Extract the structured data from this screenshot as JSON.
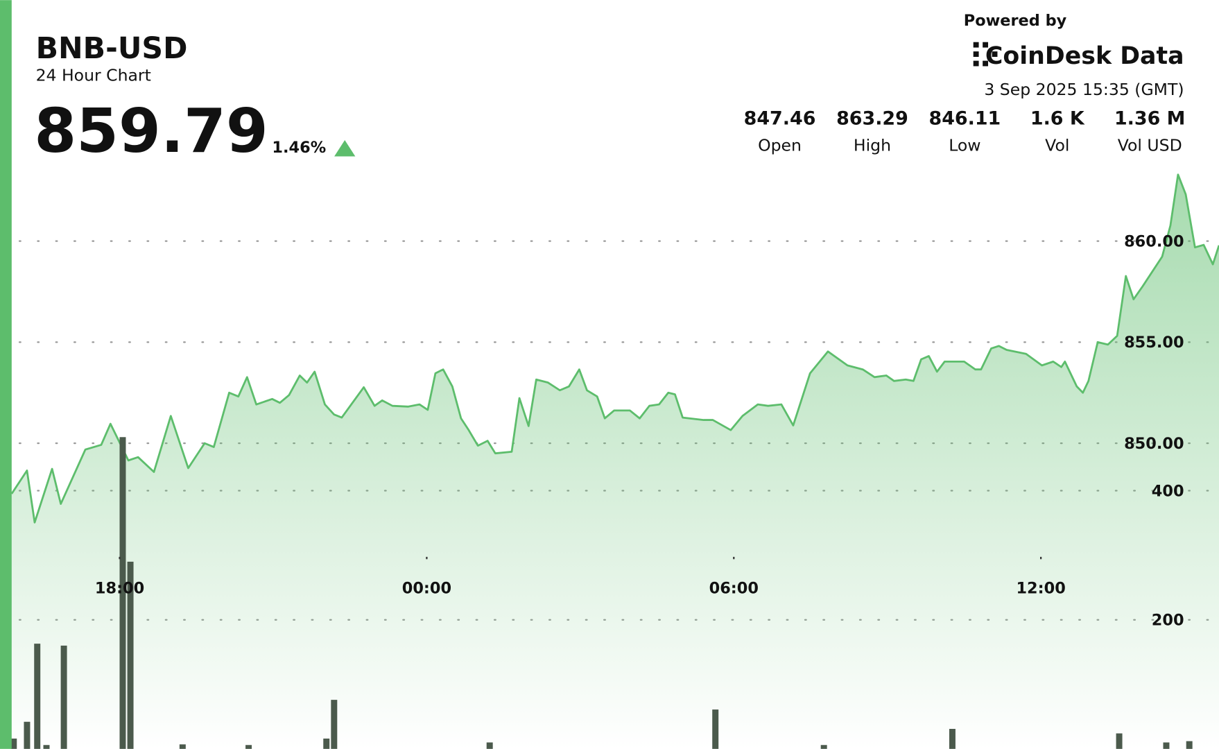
{
  "header": {
    "title": "BNB-USD",
    "subtitle": "24 Hour Chart",
    "price": "859.79",
    "change": "1.46%",
    "powered_by": "Powered by",
    "brand": "CoinDesk Data",
    "timestamp": "3 Sep 2025 15:35 (GMT)",
    "stats": [
      {
        "value": "847.46",
        "label": "Open"
      },
      {
        "value": "863.29",
        "label": "High"
      },
      {
        "value": "846.11",
        "label": "Low"
      },
      {
        "value": "1.6 K",
        "label": "Vol"
      },
      {
        "value": "1.36 M",
        "label": "Vol USD"
      }
    ]
  },
  "chart_data": {
    "type": "line",
    "grid": true,
    "xlim": [
      15.89,
      39.48
    ],
    "xticks": [
      {
        "value": 18,
        "label": "18:00"
      },
      {
        "value": 24,
        "label": "00:00"
      },
      {
        "value": 30,
        "label": "06:00"
      },
      {
        "value": 36,
        "label": "12:00"
      }
    ],
    "ylim": [
      834.88,
      871.92
    ],
    "yticks": [
      {
        "value": 850,
        "label": "850.00"
      },
      {
        "value": 855,
        "label": "855.00"
      },
      {
        "value": 860,
        "label": "860.00"
      }
    ],
    "y2lim": [
      0,
      1160
    ],
    "y2ticks": [
      200,
      400
    ],
    "series": [
      {
        "name": "Price",
        "color": "#5dbd6c",
        "x": [
          15.89,
          16.19,
          16.34,
          16.68,
          16.85,
          17.33,
          17.64,
          17.82,
          18.17,
          18.36,
          18.67,
          19.0,
          19.34,
          19.66,
          19.84,
          20.14,
          20.32,
          20.49,
          20.67,
          20.98,
          21.13,
          21.31,
          21.52,
          21.66,
          21.81,
          22.01,
          22.19,
          22.34,
          22.77,
          22.98,
          23.13,
          23.33,
          23.64,
          23.86,
          24.02,
          24.17,
          24.32,
          24.5,
          24.67,
          24.82,
          25.0,
          25.19,
          25.34,
          25.66,
          25.81,
          25.99,
          26.14,
          26.37,
          26.6,
          26.78,
          26.98,
          27.13,
          27.33,
          27.48,
          27.66,
          27.97,
          28.16,
          28.35,
          28.54,
          28.72,
          28.85,
          29.0,
          29.41,
          29.59,
          29.94,
          30.17,
          30.47,
          30.67,
          30.93,
          31.16,
          31.49,
          31.84,
          32.22,
          32.52,
          32.75,
          32.98,
          33.13,
          33.36,
          33.51,
          33.66,
          33.81,
          33.97,
          34.12,
          34.5,
          34.72,
          34.83,
          35.03,
          35.18,
          35.33,
          35.71,
          36.02,
          36.24,
          36.4,
          36.47,
          36.7,
          36.82,
          36.93,
          37.11,
          37.31,
          37.49,
          37.66,
          37.81,
          37.99,
          38.37,
          38.53,
          38.68,
          38.83,
          39.01,
          39.18,
          39.36,
          39.48
        ],
        "values": [
          847.5,
          848.65,
          846.08,
          848.73,
          847.0,
          849.69,
          849.92,
          850.96,
          849.15,
          849.31,
          848.58,
          851.35,
          848.77,
          850.0,
          849.81,
          852.5,
          852.31,
          853.27,
          851.92,
          852.19,
          852.0,
          852.38,
          853.35,
          853.0,
          853.54,
          851.92,
          851.42,
          851.27,
          852.77,
          851.85,
          852.12,
          851.85,
          851.81,
          851.92,
          851.65,
          853.46,
          853.65,
          852.81,
          851.23,
          850.65,
          849.88,
          850.12,
          849.5,
          849.58,
          852.23,
          850.85,
          853.15,
          853.0,
          852.62,
          852.81,
          853.65,
          852.62,
          852.31,
          851.23,
          851.62,
          851.62,
          851.23,
          851.85,
          851.92,
          852.5,
          852.42,
          851.27,
          851.15,
          851.15,
          850.65,
          851.35,
          851.92,
          851.85,
          851.92,
          850.88,
          853.46,
          854.54,
          853.85,
          853.65,
          853.27,
          853.35,
          853.08,
          853.15,
          853.08,
          854.15,
          854.31,
          853.54,
          854.04,
          854.04,
          853.65,
          853.65,
          854.69,
          854.81,
          854.62,
          854.42,
          853.85,
          854.04,
          853.77,
          854.04,
          852.81,
          852.5,
          853.08,
          855.0,
          854.88,
          855.31,
          858.27,
          857.12,
          857.77,
          859.23,
          860.77,
          863.29,
          862.31,
          859.69,
          859.81,
          858.85,
          859.79
        ]
      },
      {
        "name": "Volume",
        "color": "#4b5a4c",
        "axis": "y2",
        "x": [
          15.93,
          16.19,
          16.39,
          16.57,
          16.91,
          18.06,
          18.21,
          19.23,
          20.52,
          22.04,
          22.19,
          25.23,
          29.64,
          31.76,
          34.27,
          37.53,
          38.45,
          38.9
        ],
        "values": [
          16,
          42,
          163,
          6,
          160,
          483,
          290,
          7,
          6,
          16,
          76,
          10,
          61,
          6,
          31,
          24,
          10,
          12
        ]
      }
    ]
  }
}
